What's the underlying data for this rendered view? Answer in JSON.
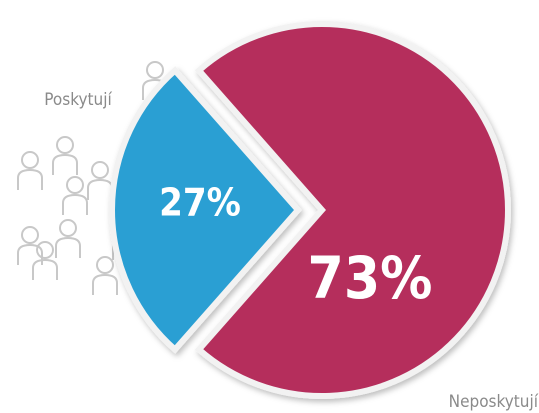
{
  "chart_data": {
    "type": "pie",
    "categories": [
      "Poskytují",
      "Neposkytují"
    ],
    "values": [
      27,
      73
    ],
    "value_labels": [
      "27%",
      "73%"
    ],
    "colors": [
      "#2b9fd3",
      "#b52f5c"
    ]
  }
}
